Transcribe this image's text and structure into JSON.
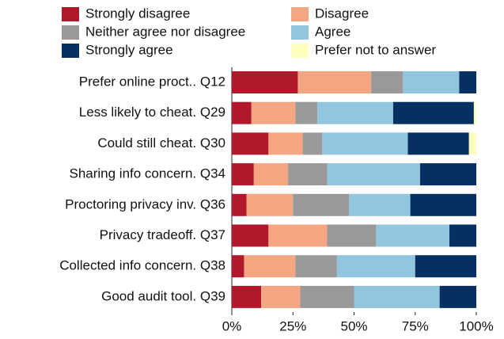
{
  "chart_data": {
    "type": "stacked_barh",
    "categories": [
      "Prefer online proct.. Q12",
      "Less likely to cheat. Q29",
      "Could still cheat. Q30",
      "Sharing info concern. Q34",
      "Proctoring privacy inv. Q36",
      "Privacy tradeoff. Q37",
      "Collected info concern. Q38",
      "Good audit tool. Q39"
    ],
    "series": [
      {
        "name": "Strongly disagree",
        "color": "#b2182b",
        "values": [
          27,
          8,
          15,
          9,
          6,
          15,
          5,
          12
        ]
      },
      {
        "name": "Disagree",
        "color": "#f4a582",
        "values": [
          30,
          18,
          14,
          14,
          19,
          24,
          21,
          16
        ]
      },
      {
        "name": "Neither agree nor disagree",
        "color": "#999999",
        "values": [
          13,
          9,
          8,
          16,
          23,
          20,
          17,
          22
        ]
      },
      {
        "name": "Agree",
        "color": "#92c5de",
        "values": [
          23,
          31,
          35,
          38,
          25,
          30,
          32,
          35
        ]
      },
      {
        "name": "Strongly agree",
        "color": "#053061",
        "values": [
          7,
          33,
          25,
          23,
          27,
          11,
          25,
          15
        ]
      },
      {
        "name": "Prefer not to answer",
        "color": "#ffffbf",
        "values": [
          0,
          1,
          3,
          0,
          0,
          0,
          0,
          0
        ]
      }
    ],
    "xlim": [
      0,
      100
    ],
    "xticks": [
      {
        "value": 0,
        "label": "0%"
      },
      {
        "value": 25,
        "label": "25%"
      },
      {
        "value": 50,
        "label": "50%"
      },
      {
        "value": 75,
        "label": "75%"
      },
      {
        "value": 100,
        "label": "100%"
      }
    ],
    "legend": "top"
  }
}
